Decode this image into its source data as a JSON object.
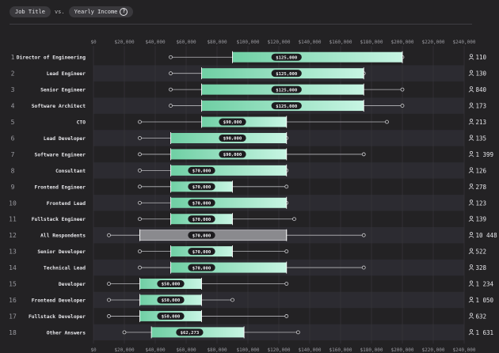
{
  "header": {
    "pill1": "Job Title",
    "vs": "vs.",
    "pill2": "Yearly Income",
    "help_icon": "?"
  },
  "colors": {
    "bar_from": "#6fcfa4",
    "bar_to": "#c7f5e3",
    "bar_grey": "#8a8a8e",
    "row_alt": "#2c2b31",
    "bg": "#232224"
  },
  "chart_data": {
    "type": "bar",
    "subtype": "range-box",
    "xlim": [
      0,
      240000
    ],
    "x_ticks": [
      "$0",
      "$20,000",
      "$40,000",
      "$60,000",
      "$80,000",
      "$100,000",
      "$120,000",
      "$140,000",
      "$160,000",
      "$180,000",
      "$200,000",
      "$220,000",
      "$240,000"
    ],
    "x_tick_values": [
      0,
      20000,
      40000,
      60000,
      80000,
      100000,
      120000,
      140000,
      160000,
      180000,
      200000,
      220000,
      240000
    ],
    "rows": [
      {
        "rank": "1",
        "label": "Director of Engineering",
        "whisker_low": 50000,
        "box_low": 90000,
        "median": 125000,
        "median_label": "$125,000",
        "box_high": 200000,
        "whisker_high": 200000,
        "count": "110",
        "highlight": false
      },
      {
        "rank": "2",
        "label": "Lead Engineer",
        "whisker_low": 50000,
        "box_low": 70000,
        "median": 125000,
        "median_label": "$125,000",
        "box_high": 175000,
        "whisker_high": 175000,
        "count": "130",
        "highlight": false
      },
      {
        "rank": "3",
        "label": "Senior Engineer",
        "whisker_low": 50000,
        "box_low": 70000,
        "median": 125000,
        "median_label": "$125,000",
        "box_high": 175000,
        "whisker_high": 200000,
        "count": "840",
        "highlight": false
      },
      {
        "rank": "4",
        "label": "Software Architect",
        "whisker_low": 50000,
        "box_low": 70000,
        "median": 125000,
        "median_label": "$125,000",
        "box_high": 175000,
        "whisker_high": 200000,
        "count": "173",
        "highlight": false
      },
      {
        "rank": "5",
        "label": "CTO",
        "whisker_low": 30000,
        "box_low": 70000,
        "median": 90000,
        "median_label": "$90,000",
        "box_high": 125000,
        "whisker_high": 190000,
        "count": "213",
        "highlight": false
      },
      {
        "rank": "6",
        "label": "Lead Developer",
        "whisker_low": 30000,
        "box_low": 50000,
        "median": 90000,
        "median_label": "$90,000",
        "box_high": 125000,
        "whisker_high": 125000,
        "count": "135",
        "highlight": false
      },
      {
        "rank": "7",
        "label": "Software Engineer",
        "whisker_low": 30000,
        "box_low": 50000,
        "median": 90000,
        "median_label": "$90,000",
        "box_high": 125000,
        "whisker_high": 175000,
        "count": "1 399",
        "highlight": false
      },
      {
        "rank": "8",
        "label": "Consultant",
        "whisker_low": 30000,
        "box_low": 50000,
        "median": 70000,
        "median_label": "$70,000",
        "box_high": 125000,
        "whisker_high": 125000,
        "count": "126",
        "highlight": false
      },
      {
        "rank": "9",
        "label": "Frontend Engineer",
        "whisker_low": 30000,
        "box_low": 50000,
        "median": 70000,
        "median_label": "$70,000",
        "box_high": 90000,
        "whisker_high": 125000,
        "count": "278",
        "highlight": false
      },
      {
        "rank": "10",
        "label": "Frontend Lead",
        "whisker_low": 30000,
        "box_low": 50000,
        "median": 70000,
        "median_label": "$70,000",
        "box_high": 125000,
        "whisker_high": 125000,
        "count": "123",
        "highlight": false
      },
      {
        "rank": "11",
        "label": "Fullstack Engineer",
        "whisker_low": 30000,
        "box_low": 50000,
        "median": 70000,
        "median_label": "$70,000",
        "box_high": 90000,
        "whisker_high": 130000,
        "count": "139",
        "highlight": false
      },
      {
        "rank": "12",
        "label": "All Respondents",
        "whisker_low": 10000,
        "box_low": 30000,
        "median": 70000,
        "median_label": "$70,000",
        "box_high": 125000,
        "whisker_high": 175000,
        "count": "10 448",
        "highlight": true
      },
      {
        "rank": "13",
        "label": "Senior Developer",
        "whisker_low": 30000,
        "box_low": 50000,
        "median": 70000,
        "median_label": "$70,000",
        "box_high": 90000,
        "whisker_high": 125000,
        "count": "522",
        "highlight": false
      },
      {
        "rank": "14",
        "label": "Technical Lead",
        "whisker_low": 30000,
        "box_low": 50000,
        "median": 70000,
        "median_label": "$70,000",
        "box_high": 125000,
        "whisker_high": 175000,
        "count": "328",
        "highlight": false
      },
      {
        "rank": "15",
        "label": "Developer",
        "whisker_low": 10000,
        "box_low": 30000,
        "median": 50000,
        "median_label": "$50,000",
        "box_high": 70000,
        "whisker_high": 125000,
        "count": "1 234",
        "highlight": false
      },
      {
        "rank": "16",
        "label": "Frontend Developer",
        "whisker_low": 10000,
        "box_low": 30000,
        "median": 50000,
        "median_label": "$50,000",
        "box_high": 70000,
        "whisker_high": 90000,
        "count": "1 050",
        "highlight": false
      },
      {
        "rank": "17",
        "label": "Fullstack Developer",
        "whisker_low": 10000,
        "box_low": 30000,
        "median": 50000,
        "median_label": "$50,000",
        "box_high": 70000,
        "whisker_high": 125000,
        "count": "632",
        "highlight": false
      },
      {
        "rank": "18",
        "label": "Other Answers",
        "whisker_low": 20000,
        "box_low": 37500,
        "median": 62273,
        "median_label": "$62,273",
        "box_high": 97500,
        "whisker_high": 132500,
        "count": "1 631",
        "highlight": false
      }
    ]
  }
}
